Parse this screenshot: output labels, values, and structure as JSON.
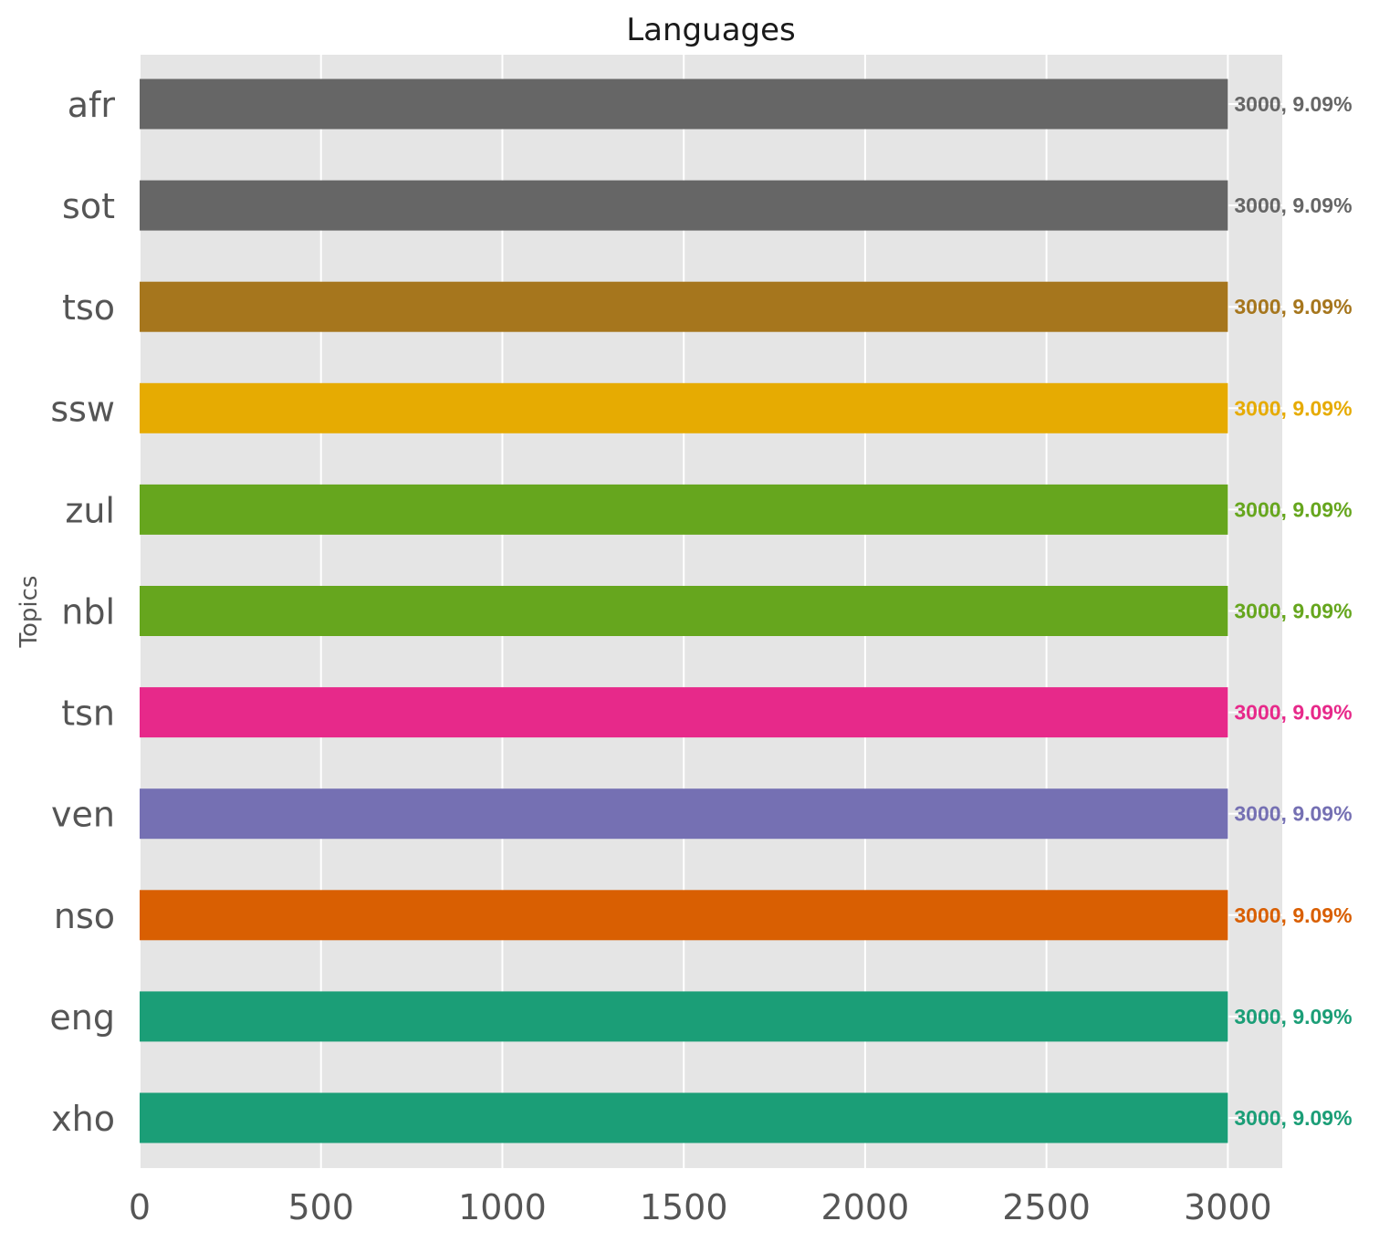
{
  "chart_data": {
    "type": "bar",
    "orientation": "horizontal",
    "title": "Languages",
    "xlabel": "",
    "ylabel": "Topics",
    "xlim": [
      0,
      3150
    ],
    "xticks": [
      0,
      500,
      1000,
      1500,
      2000,
      2500,
      3000
    ],
    "grid": true,
    "legend": "none",
    "background_color": "#e5e5e5",
    "categories": [
      "afr",
      "sot",
      "tso",
      "ssw",
      "zul",
      "nbl",
      "tsn",
      "ven",
      "nso",
      "eng",
      "xho"
    ],
    "values": [
      3000,
      3000,
      3000,
      3000,
      3000,
      3000,
      3000,
      3000,
      3000,
      3000,
      3000
    ],
    "data_labels": [
      "3000, 9.09%",
      "3000, 9.09%",
      "3000, 9.09%",
      "3000, 9.09%",
      "3000, 9.09%",
      "3000, 9.09%",
      "3000, 9.09%",
      "3000, 9.09%",
      "3000, 9.09%",
      "3000, 9.09%",
      "3000, 9.09%"
    ],
    "colors": [
      "#666666",
      "#666666",
      "#a6761d",
      "#e6ab02",
      "#66a61e",
      "#66a61e",
      "#e7298a",
      "#7570b3",
      "#d95f02",
      "#1b9e77",
      "#1b9e77"
    ]
  }
}
